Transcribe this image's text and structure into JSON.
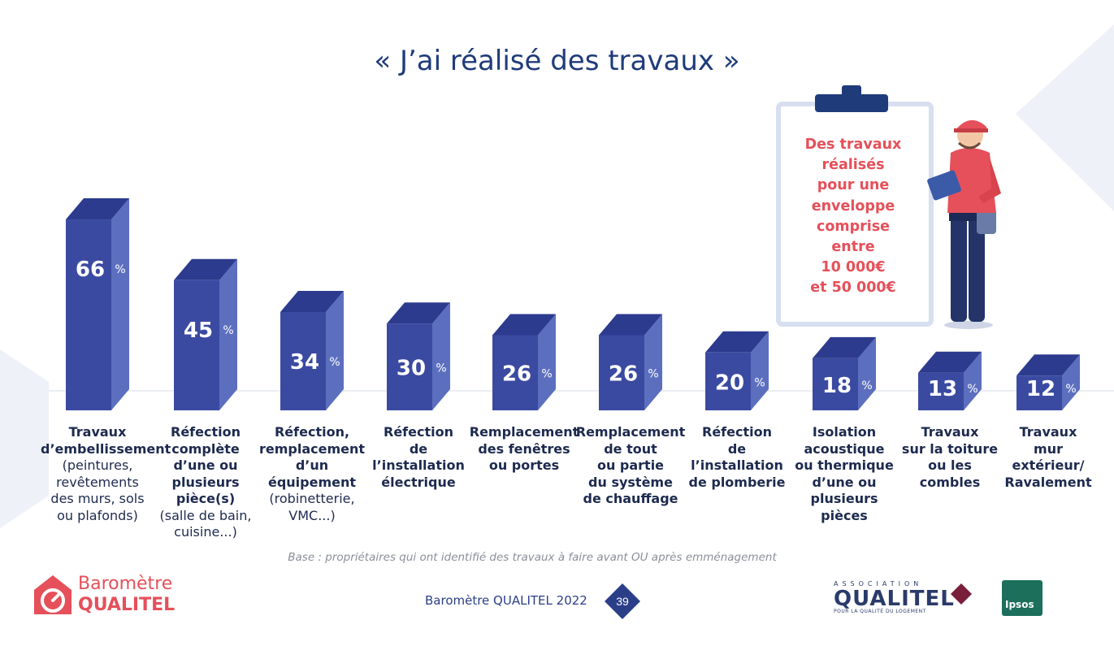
{
  "title": "« J’ai réalisé des travaux »",
  "colors": {
    "bar_front": "#3b4aa1",
    "bar_side": "#5c6fbf",
    "bar_top": "#2c3b8e",
    "title": "#1f3b7a",
    "accent": "#e5505a"
  },
  "chart_data": {
    "type": "bar",
    "unit": "%",
    "values": [
      66,
      45,
      34,
      30,
      26,
      26,
      20,
      18,
      13,
      12
    ],
    "categories": [
      {
        "bold": [
          "Travaux",
          "d’embellissement"
        ],
        "sub": [
          "(peintures,",
          "revêtements",
          "des murs, sols",
          "ou plafonds)"
        ]
      },
      {
        "bold": [
          "Réfection",
          "complète",
          "d’une ou",
          "plusieurs",
          "pièce(s)"
        ],
        "sub": [
          "(salle de bain,",
          "cuisine...)"
        ]
      },
      {
        "bold": [
          "Réfection,",
          "remplacement",
          "d’un équipement"
        ],
        "sub": [
          "(robinetterie,",
          "VMC...)"
        ]
      },
      {
        "bold": [
          "Réfection",
          "de l’installation",
          "électrique"
        ],
        "sub": []
      },
      {
        "bold": [
          "Remplacement",
          "des fenêtres",
          "ou portes"
        ],
        "sub": []
      },
      {
        "bold": [
          "Remplacement",
          "de tout",
          "ou partie",
          "du système",
          "de chauffage"
        ],
        "sub": []
      },
      {
        "bold": [
          "Réfection",
          "de l’installation",
          "de plomberie"
        ],
        "sub": []
      },
      {
        "bold": [
          "Isolation",
          "acoustique",
          "ou thermique",
          "d’une ou",
          "plusieurs",
          "pièces"
        ],
        "sub": []
      },
      {
        "bold": [
          "Travaux",
          "sur la toiture",
          "ou les",
          "combles"
        ],
        "sub": []
      },
      {
        "bold": [
          "Travaux",
          "mur",
          "extérieur/",
          "Ravalement"
        ],
        "sub": []
      }
    ]
  },
  "callout": {
    "lines": [
      "Des travaux",
      "réalisés",
      "pour une",
      "enveloppe",
      "comprise",
      "entre",
      "10 000€",
      "et 50 000€"
    ]
  },
  "base_note": "Base : propriétaires qui ont identifié des travaux à faire avant OU après emménagement",
  "footer": {
    "center_text": "Baromètre QUALITEL 2022",
    "page_number": "39",
    "brand_line1": "Baromètre",
    "brand_line2": "QUALITEL",
    "assoc_top": "ASSOCIATION",
    "assoc_name": "QUALITEL",
    "assoc_tagline": "POUR LA QUALITÉ DU LOGEMENT",
    "ipsos": "Ipsos"
  }
}
